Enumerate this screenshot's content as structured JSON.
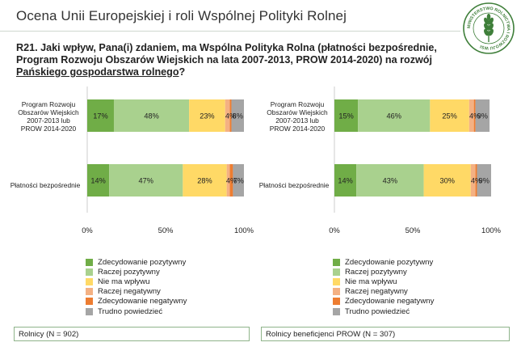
{
  "header": {
    "title": "Ocena Unii Europejskiej i roli Wspólnej Polityki Rolnej"
  },
  "logo": {
    "text": "MINISTERSTWO ROLNICTWA I ROZWOJU WSI",
    "icon": "wheat-icon"
  },
  "question": {
    "text": "R21. Jaki wpływ, Pana(i) zdaniem, ma Wspólna Polityka Rolna (płatności bezpośrednie, Program Rozwoju Obszarów Wiejskich na lata 2007-2013, PROW 2014-2020) na rozwój ",
    "highlight": "Pańskiego gospodarstwa rolnego",
    "end": "?"
  },
  "colors": [
    "#70ad47",
    "#a9d18e",
    "#ffd966",
    "#f4b183",
    "#ed7d31",
    "#a5a5a5"
  ],
  "chart_data": [
    {
      "type": "bar",
      "orientation": "horizontal",
      "stacked": true,
      "categories": [
        "Program Rozwoju Obszarów Wiejskich 2007-2013  lub PROW 2014-2020",
        "Płatności bezpośrednie"
      ],
      "series": [
        {
          "name": "Zdecydowanie pozytywny",
          "values": [
            17,
            14
          ]
        },
        {
          "name": "Raczej pozytywny",
          "values": [
            48,
            47
          ]
        },
        {
          "name": "Nie ma wpływu",
          "values": [
            23,
            28
          ]
        },
        {
          "name": "Raczej negatywny",
          "values": [
            3,
            2
          ]
        },
        {
          "name": "Zdecydowanie negatywny",
          "values": [
            1,
            2
          ]
        },
        {
          "name": "Trudno powiedzieć",
          "values": [
            8,
            7
          ]
        }
      ],
      "labels": [
        [
          "17%",
          "48%",
          "23%",
          "",
          "4%",
          "8%"
        ],
        [
          "14%",
          "47%",
          "28%",
          "",
          "4%",
          "7%"
        ]
      ],
      "xlim": [
        0,
        100
      ],
      "ticks": [
        "0%",
        "50%",
        "100%"
      ],
      "base": "Rolnicy (N = 902)"
    },
    {
      "type": "bar",
      "orientation": "horizontal",
      "stacked": true,
      "categories": [
        "Program Rozwoju Obszarów Wiejskich 2007-2013  lub PROW 2014-2020",
        "Płatności bezpośrednie"
      ],
      "series": [
        {
          "name": "Zdecydowanie pozytywny",
          "values": [
            15,
            14
          ]
        },
        {
          "name": "Raczej pozytywny",
          "values": [
            46,
            43
          ]
        },
        {
          "name": "Nie ma wpływu",
          "values": [
            25,
            30
          ]
        },
        {
          "name": "Raczej negatywny",
          "values": [
            3,
            3
          ]
        },
        {
          "name": "Zdecydowanie negatywny",
          "values": [
            1,
            1
          ]
        },
        {
          "name": "Trudno powiedzieć",
          "values": [
            9,
            9
          ]
        }
      ],
      "labels": [
        [
          "15%",
          "46%",
          "25%",
          "",
          "4%",
          "9%"
        ],
        [
          "14%",
          "43%",
          "30%",
          "",
          "4%",
          "9%"
        ]
      ],
      "xlim": [
        0,
        100
      ],
      "ticks": [
        "0%",
        "50%",
        "100%"
      ],
      "base": "Rolnicy beneficjenci PROW (N = 307)"
    }
  ]
}
